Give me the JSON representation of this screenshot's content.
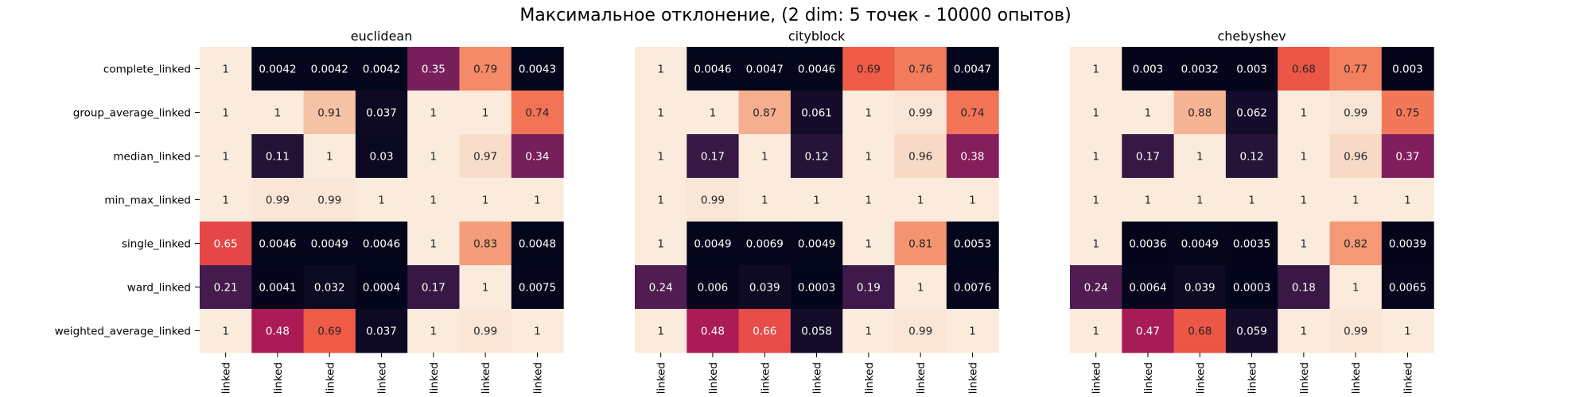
{
  "chart_data": {
    "type": "heatmap",
    "title": "Максимальное отклонение, (2 dim: 5 точек - 10000 опытов)",
    "rows": [
      "complete_linked",
      "group_average_linked",
      "median_linked",
      "min_max_linked",
      "single_linked",
      "ward_linked",
      "weighted_average_linked"
    ],
    "columns": [
      "complete_linked",
      "group_average_linked",
      "median_linked",
      "min_max_linked",
      "single_linked",
      "ward_linked",
      "weighted_average_linked"
    ],
    "column_label_suffix": "linked",
    "colormap": "rocket",
    "value_range": [
      0,
      1
    ],
    "panels": [
      {
        "subtitle": "euclidean",
        "values": [
          [
            1,
            0.0042,
            0.0042,
            0.0042,
            0.35,
            0.79,
            0.0043
          ],
          [
            1,
            1,
            0.91,
            0.037,
            1,
            1,
            0.74
          ],
          [
            1,
            0.11,
            1,
            0.03,
            1,
            0.97,
            0.34
          ],
          [
            1,
            0.99,
            0.99,
            1,
            1,
            1,
            1
          ],
          [
            0.65,
            0.0046,
            0.0049,
            0.0046,
            1,
            0.83,
            0.0048
          ],
          [
            0.21,
            0.0041,
            0.032,
            0.0004,
            0.17,
            1,
            0.0075
          ],
          [
            1,
            0.48,
            0.69,
            0.037,
            1,
            0.99,
            1
          ]
        ]
      },
      {
        "subtitle": "cityblock",
        "values": [
          [
            1,
            0.0046,
            0.0047,
            0.0046,
            0.69,
            0.76,
            0.0047
          ],
          [
            1,
            1,
            0.87,
            0.061,
            1,
            0.99,
            0.74
          ],
          [
            1,
            0.17,
            1,
            0.12,
            1,
            0.96,
            0.38
          ],
          [
            1,
            0.99,
            1,
            1,
            1,
            1,
            1
          ],
          [
            1,
            0.0049,
            0.0069,
            0.0049,
            1,
            0.81,
            0.0053
          ],
          [
            0.24,
            0.006,
            0.039,
            0.0003,
            0.19,
            1,
            0.0076
          ],
          [
            1,
            0.48,
            0.66,
            0.058,
            1,
            0.99,
            1
          ]
        ]
      },
      {
        "subtitle": "chebyshev",
        "values": [
          [
            1,
            0.003,
            0.0032,
            0.003,
            0.68,
            0.77,
            0.003
          ],
          [
            1,
            1,
            0.88,
            0.062,
            1,
            0.99,
            0.75
          ],
          [
            1,
            0.17,
            1,
            0.12,
            1,
            0.96,
            0.37
          ],
          [
            1,
            1,
            1,
            1,
            1,
            1,
            1
          ],
          [
            1,
            0.0036,
            0.0049,
            0.0035,
            1,
            0.82,
            0.0039
          ],
          [
            0.24,
            0.0064,
            0.039,
            0.0003,
            0.18,
            1,
            0.0065
          ],
          [
            1,
            0.47,
            0.68,
            0.059,
            1,
            0.99,
            1
          ]
        ]
      }
    ]
  }
}
